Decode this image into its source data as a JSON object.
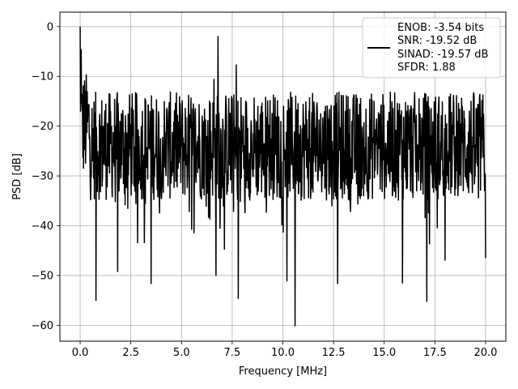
{
  "chart_data": {
    "type": "line",
    "title": "",
    "xlabel": "Frequency [MHz]",
    "ylabel": "PSD [dB]",
    "xlim": [
      -1.0,
      21.0
    ],
    "ylim": [
      -63.2,
      2.9
    ],
    "xticks": [
      0.0,
      2.5,
      5.0,
      7.5,
      10.0,
      12.5,
      15.0,
      17.5,
      20.0
    ],
    "xtick_labels": [
      "0.0",
      "2.5",
      "5.0",
      "7.5",
      "10.0",
      "12.5",
      "15.0",
      "17.5",
      "20.0"
    ],
    "yticks": [
      0,
      -10,
      -20,
      -30,
      -40,
      -50,
      -60
    ],
    "ytick_labels": [
      "0",
      "−10",
      "−20",
      "−30",
      "−40",
      "−50",
      "−60"
    ],
    "grid": true,
    "legend_position": "top-right",
    "series_color": "#000000",
    "series": [
      {
        "name": "ENOB: -3.54 bits\nSNR: -19.52 dB\nSINAD: -19.57 dB\nSFDR: 1.88",
        "legend_lines": [
          "ENOB: -3.54 bits",
          "SNR: -19.52 dB",
          "SINAD: -19.57 dB",
          "SFDR: 1.88"
        ],
        "noise_floor": {
          "x_range": [
            0.0,
            20.0
          ],
          "y_typical_range": [
            -35,
            -13
          ]
        },
        "peaks": [
          {
            "x": 0.0,
            "y": 0.0
          },
          {
            "x": 0.05,
            "y": -4.5
          },
          {
            "x": 6.8,
            "y": -1.9
          },
          {
            "x": 7.7,
            "y": -7.6
          },
          {
            "x": 6.6,
            "y": -10.5
          }
        ],
        "dips": [
          {
            "x": 0.78,
            "y": -55.1
          },
          {
            "x": 1.85,
            "y": -49.3
          },
          {
            "x": 3.5,
            "y": -51.7
          },
          {
            "x": 6.7,
            "y": -50.1
          },
          {
            "x": 7.8,
            "y": -54.7
          },
          {
            "x": 10.2,
            "y": -51.2
          },
          {
            "x": 10.6,
            "y": -60.2
          },
          {
            "x": 12.7,
            "y": -51.7
          },
          {
            "x": 15.9,
            "y": -51.6
          },
          {
            "x": 17.1,
            "y": -55.3
          },
          {
            "x": 18.0,
            "y": -47.0
          },
          {
            "x": 20.0,
            "y": -46.5
          }
        ]
      }
    ]
  }
}
